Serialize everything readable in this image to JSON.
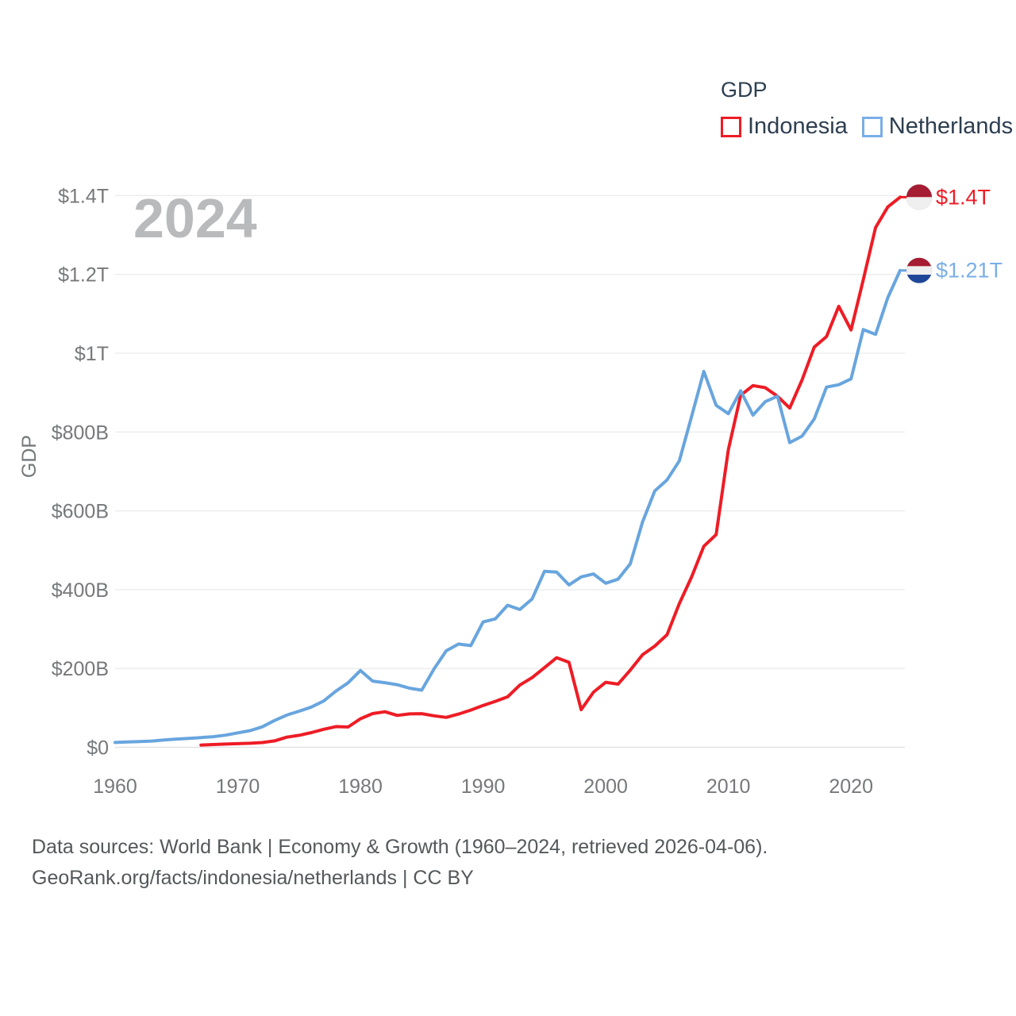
{
  "legend": {
    "title": "GDP",
    "items": [
      {
        "label": "Indonesia",
        "color": "#ee1c25"
      },
      {
        "label": "Netherlands",
        "color": "#7aaee6"
      }
    ]
  },
  "watermark": "2024",
  "footer": {
    "line1": "Data sources: World Bank | Economy & Growth (1960–2024, retrieved 2026-04-06).",
    "line2": "GeoRank.org/facts/indonesia/netherlands | CC BY"
  },
  "chart_data": {
    "type": "line",
    "title": "GDP",
    "xlabel": "",
    "ylabel": "GDP",
    "grid": true,
    "legend_position": "top-right",
    "x_range": [
      1960,
      2024
    ],
    "ylim": [
      0,
      1450
    ],
    "y_unit": "billion USD",
    "y_ticks": [
      {
        "value": 0,
        "label": "$0"
      },
      {
        "value": 200,
        "label": "$200B"
      },
      {
        "value": 400,
        "label": "$400B"
      },
      {
        "value": 600,
        "label": "$600B"
      },
      {
        "value": 800,
        "label": "$800B"
      },
      {
        "value": 1000,
        "label": "$1T"
      },
      {
        "value": 1200,
        "label": "$1.2T"
      },
      {
        "value": 1400,
        "label": "$1.4T"
      }
    ],
    "x_ticks": [
      1960,
      1970,
      1980,
      1990,
      2000,
      2010,
      2020
    ],
    "series": [
      {
        "name": "Indonesia",
        "line_color": "#ee1c25",
        "label_color": "#ee1c25",
        "flag": "indonesia",
        "end_label": "$1.4T",
        "end_label_y_value": 1396,
        "start_year": 1967,
        "values": [
          5.7,
          7.1,
          8.3,
          9.2,
          10.2,
          12.0,
          16.3,
          25.8,
          30.5,
          37.3,
          45.8,
          52.5,
          51.5,
          72.5,
          85.5,
          90.2,
          81.0,
          84.8,
          85.3,
          80.0,
          75.9,
          84.3,
          94.5,
          106.1,
          116.6,
          128.0,
          158.0,
          176.9,
          202.1,
          227.4,
          215.7,
          95.4,
          140.0,
          165.0,
          160.4,
          195.7,
          234.8,
          256.8,
          285.9,
          364.6,
          432.2,
          510.2,
          539.6,
          755.1,
          893.0,
          917.9,
          912.5,
          890.8,
          860.9,
          931.9,
          1015.6,
          1042.3,
          1119.1,
          1059.1,
          1186.5,
          1319.1,
          1371.2,
          1396.0
        ]
      },
      {
        "name": "Netherlands",
        "line_color": "#68a5de",
        "label_color": "#7aaee6",
        "flag": "netherlands",
        "end_label": "$1.21T",
        "end_label_y_value": 1210,
        "start_year": 1960,
        "values": [
          12.3,
          13.5,
          14.7,
          16.0,
          18.6,
          21.0,
          22.6,
          24.7,
          27.0,
          30.9,
          36.6,
          42.3,
          52.0,
          68.0,
          81.8,
          91.6,
          102.2,
          117.5,
          142.5,
          163.7,
          195.0,
          168.0,
          164.0,
          159.0,
          150.0,
          145.0,
          198.9,
          245.0,
          262.0,
          258.0,
          318.1,
          325.8,
          360.5,
          349.7,
          376.4,
          446.5,
          444.5,
          412.0,
          432.5,
          439.9,
          416.4,
          426.6,
          465.4,
          571.9,
          650.5,
          678.5,
          726.6,
          839.4,
          953.8,
          867.9,
          846.6,
          904.8,
          843.0,
          877.0,
          890.9,
          773.2,
          789.5,
          833.0,
          914.0,
          920.0,
          935.0,
          1060.0,
          1048.0,
          1141.0,
          1210.0
        ]
      }
    ],
    "flag_colors": {
      "indonesia_red": "#a61c33",
      "flag_white": "#efefef",
      "netherlands_blue": "#1f4698"
    }
  }
}
